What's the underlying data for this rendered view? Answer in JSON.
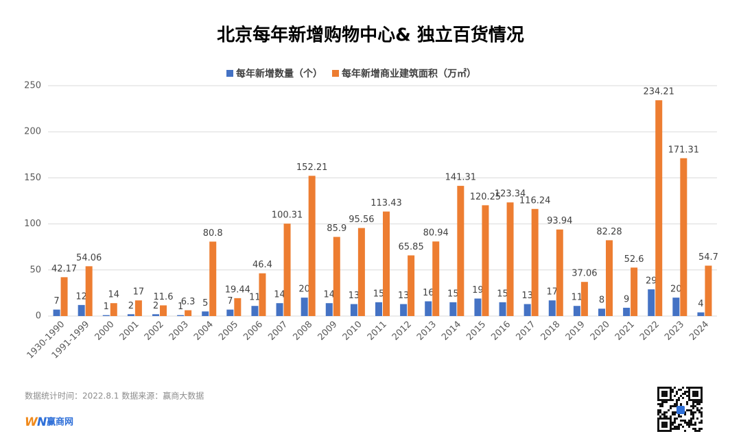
{
  "chart_data": {
    "type": "bar",
    "title": "北京每年新增购物中心& 独立百货情况",
    "categories": [
      "1930-1990",
      "1991-1999",
      "2000",
      "2001",
      "2002",
      "2003",
      "2004",
      "2005",
      "2006",
      "2007",
      "2008",
      "2009",
      "2010",
      "2011",
      "2012",
      "2013",
      "2014",
      "2015",
      "2016",
      "2017",
      "2018",
      "2019",
      "2020",
      "2021",
      "2022",
      "2023",
      "2024"
    ],
    "series": [
      {
        "name": "每年新增数量（个）",
        "color": "#4472c4",
        "values": [
          7,
          12,
          1,
          2,
          2,
          1,
          5,
          7,
          11,
          14,
          20,
          14,
          13,
          15,
          13,
          16,
          15,
          19,
          15,
          13,
          17,
          11,
          8,
          9,
          29,
          20,
          4
        ]
      },
      {
        "name": "每年新增商业建筑面积（万㎡）",
        "color": "#ed7d31",
        "values": [
          42.17,
          54.06,
          14,
          17,
          11.6,
          6.3,
          80.8,
          19.44,
          46.4,
          100.31,
          152.21,
          85.9,
          95.56,
          113.43,
          65.85,
          80.94,
          141.31,
          120.25,
          123.34,
          116.24,
          93.94,
          37.06,
          82.28,
          52.6,
          234.21,
          171.31,
          54.7
        ]
      }
    ],
    "ylim": [
      0,
      250
    ],
    "yticks": [
      0,
      50,
      100,
      150,
      200,
      250
    ],
    "grid": true,
    "legend": "top"
  },
  "footer": {
    "note": "数据统计时间：2022.8.1  数据来源：赢商大数据",
    "brand": "赢商网"
  }
}
